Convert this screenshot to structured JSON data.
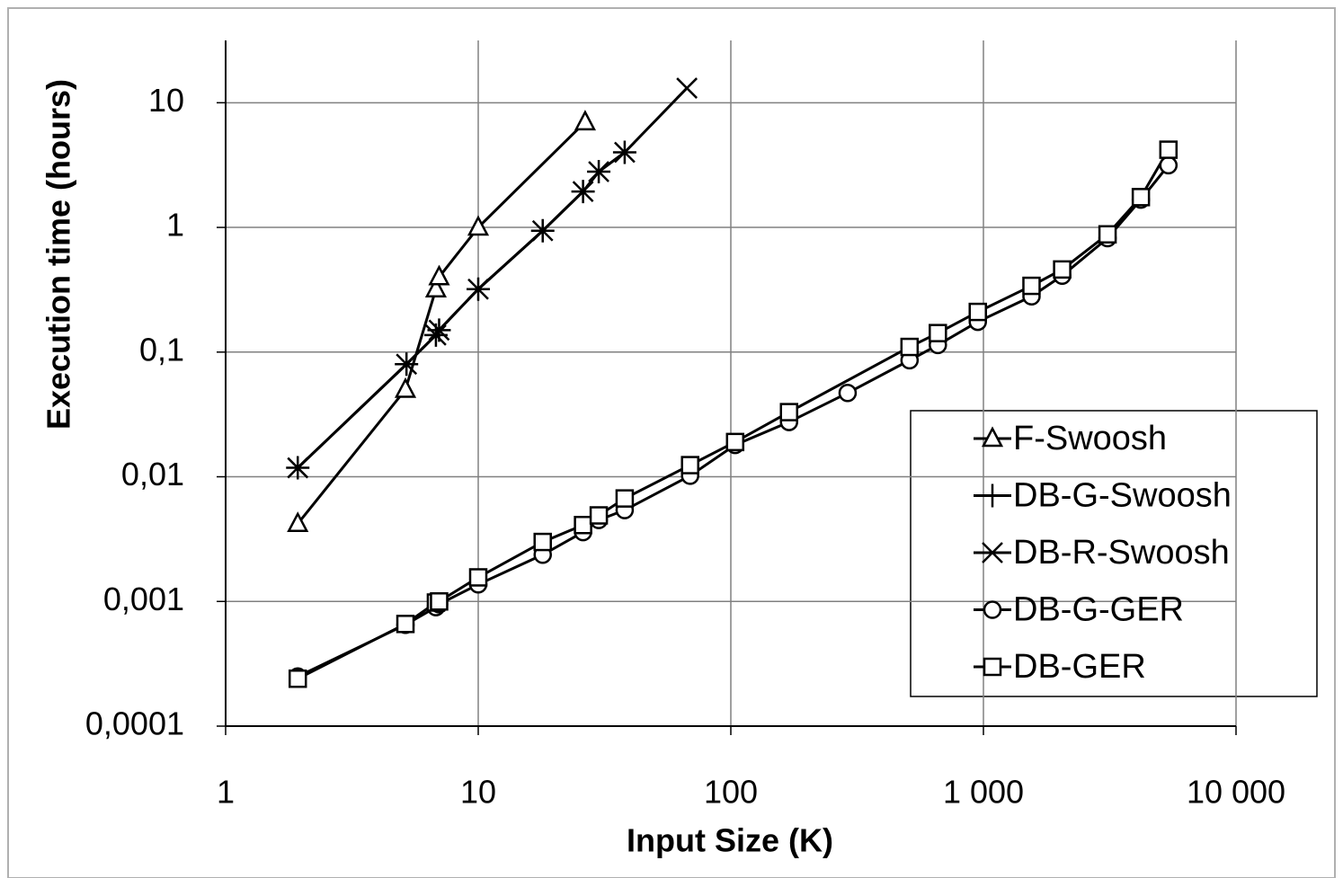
{
  "chart_data": {
    "type": "line",
    "x_label": "Input Size (K)",
    "y_label": "Execution time (hours)",
    "xscale": "log",
    "yscale": "log",
    "grid": true,
    "legend": "lower right",
    "xlim": [
      1,
      10000
    ],
    "xticks": [
      1,
      10,
      100,
      {
        "value": 1000,
        "label": "1 000"
      },
      {
        "value": 10000,
        "label": "10 000"
      }
    ],
    "ylim": [
      0.0001,
      31.6
    ],
    "yticks": [
      {
        "value": 0.0001,
        "label": "0,0001"
      },
      {
        "value": 0.001,
        "label": "0,001"
      },
      {
        "value": 0.01,
        "label": "0,01"
      },
      {
        "value": 0.1,
        "label": "0,1"
      },
      1,
      10
    ],
    "series": [
      {
        "name": "F-Swoosh",
        "color": "#000000",
        "marker": "triangle",
        "x": [
          1.93,
          5.15,
          6.8,
          7,
          10,
          26.5
        ],
        "values": [
          0.0042,
          0.05,
          0.32,
          0.4,
          1.0,
          7.0
        ]
      },
      {
        "name": "DB-G-Swoosh",
        "color": "#000000",
        "marker": "plus",
        "x": [
          1.93,
          5.2,
          6.8,
          7,
          10,
          18,
          26,
          30,
          38
        ],
        "values": [
          0.0118,
          0.08,
          0.137,
          0.15,
          0.32,
          0.94,
          1.94,
          2.8,
          4.0
        ]
      },
      {
        "name": "DB-R-Swoosh",
        "color": "#000000",
        "marker": "x",
        "x": [
          1.93,
          5.2,
          6.8,
          7,
          10,
          18,
          26,
          30,
          38,
          67
        ],
        "values": [
          0.0118,
          0.08,
          0.137,
          0.15,
          0.32,
          0.94,
          1.94,
          2.8,
          4.0,
          13.1
        ]
      },
      {
        "name": "DB-G-GER",
        "color": "#000000",
        "marker": "circle",
        "x": [
          1.93,
          5.15,
          6.8,
          7,
          10,
          18,
          26,
          30,
          38,
          69,
          104,
          170,
          290,
          510,
          660,
          950,
          1550,
          2050,
          3100,
          4200,
          5400
        ],
        "values": [
          0.00025,
          0.00065,
          0.0009,
          0.00095,
          0.00137,
          0.00237,
          0.0036,
          0.0045,
          0.0054,
          0.0102,
          0.018,
          0.0275,
          0.047,
          0.086,
          0.114,
          0.175,
          0.28,
          0.41,
          0.82,
          1.67,
          3.15
        ]
      },
      {
        "name": "DB-GER",
        "color": "#000000",
        "marker": "square",
        "x": [
          1.93,
          5.15,
          6.8,
          7,
          10,
          18,
          26,
          30,
          38,
          69,
          104,
          170,
          510,
          660,
          950,
          1550,
          2050,
          3100,
          4200,
          5400
        ],
        "values": [
          0.00024,
          0.00066,
          0.00098,
          0.001,
          0.00156,
          0.003,
          0.0041,
          0.0049,
          0.0067,
          0.0124,
          0.019,
          0.033,
          0.11,
          0.142,
          0.21,
          0.34,
          0.46,
          0.88,
          1.75,
          4.2
        ]
      }
    ]
  }
}
